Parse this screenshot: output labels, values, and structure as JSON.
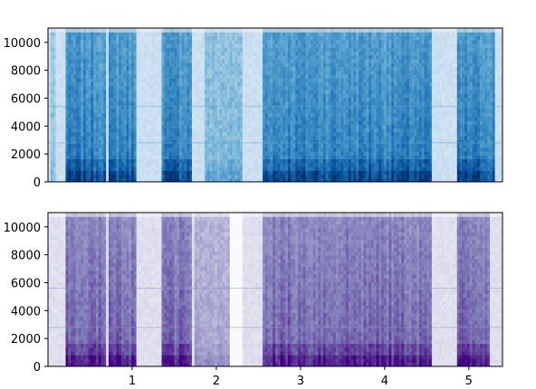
{
  "chart_data": [
    {
      "type": "heatmap",
      "colormap": "Blues",
      "xlim": [
        0,
        5.4
      ],
      "ylim": [
        0,
        11025
      ],
      "yticks": [
        0,
        2000,
        4000,
        6000,
        8000,
        10000
      ],
      "ytick_labels": [
        "0",
        "2000",
        "4000",
        "6000",
        "8000",
        "10000"
      ],
      "xticks": [],
      "xtick_labels": [],
      "segments": [
        {
          "start": 0.02,
          "end": 0.1,
          "intensity": 0.25
        },
        {
          "start": 0.22,
          "end": 0.7,
          "intensity": 0.85
        },
        {
          "start": 0.72,
          "end": 1.05,
          "intensity": 0.85
        },
        {
          "start": 1.35,
          "end": 1.7,
          "intensity": 0.85
        },
        {
          "start": 1.85,
          "end": 2.3,
          "intensity": 0.35
        },
        {
          "start": 2.55,
          "end": 4.55,
          "intensity": 0.85
        },
        {
          "start": 4.85,
          "end": 5.3,
          "intensity": 0.85
        }
      ],
      "horizontal_lines_hz": [
        5400,
        2800
      ]
    },
    {
      "type": "heatmap",
      "colormap": "Purples",
      "xlim": [
        0,
        5.4
      ],
      "ylim": [
        0,
        11025
      ],
      "yticks": [
        0,
        2000,
        4000,
        6000,
        8000,
        10000
      ],
      "ytick_labels": [
        "0",
        "2000",
        "4000",
        "6000",
        "8000",
        "10000"
      ],
      "xticks": [
        1,
        2,
        3,
        4,
        5
      ],
      "xtick_labels": [
        "1",
        "2",
        "3",
        "4",
        "5"
      ],
      "segments": [
        {
          "start": 0.22,
          "end": 0.7,
          "intensity": 0.85
        },
        {
          "start": 0.72,
          "end": 1.05,
          "intensity": 0.85
        },
        {
          "start": 1.35,
          "end": 1.7,
          "intensity": 0.85
        },
        {
          "start": 1.75,
          "end": 2.15,
          "intensity": 0.35
        },
        {
          "start": 2.55,
          "end": 4.55,
          "intensity": 0.85
        },
        {
          "start": 4.85,
          "end": 5.25,
          "intensity": 0.85
        }
      ],
      "bright_band": {
        "start": 2.15,
        "end": 2.3
      },
      "horizontal_lines_hz": [
        5600,
        2800
      ]
    }
  ]
}
